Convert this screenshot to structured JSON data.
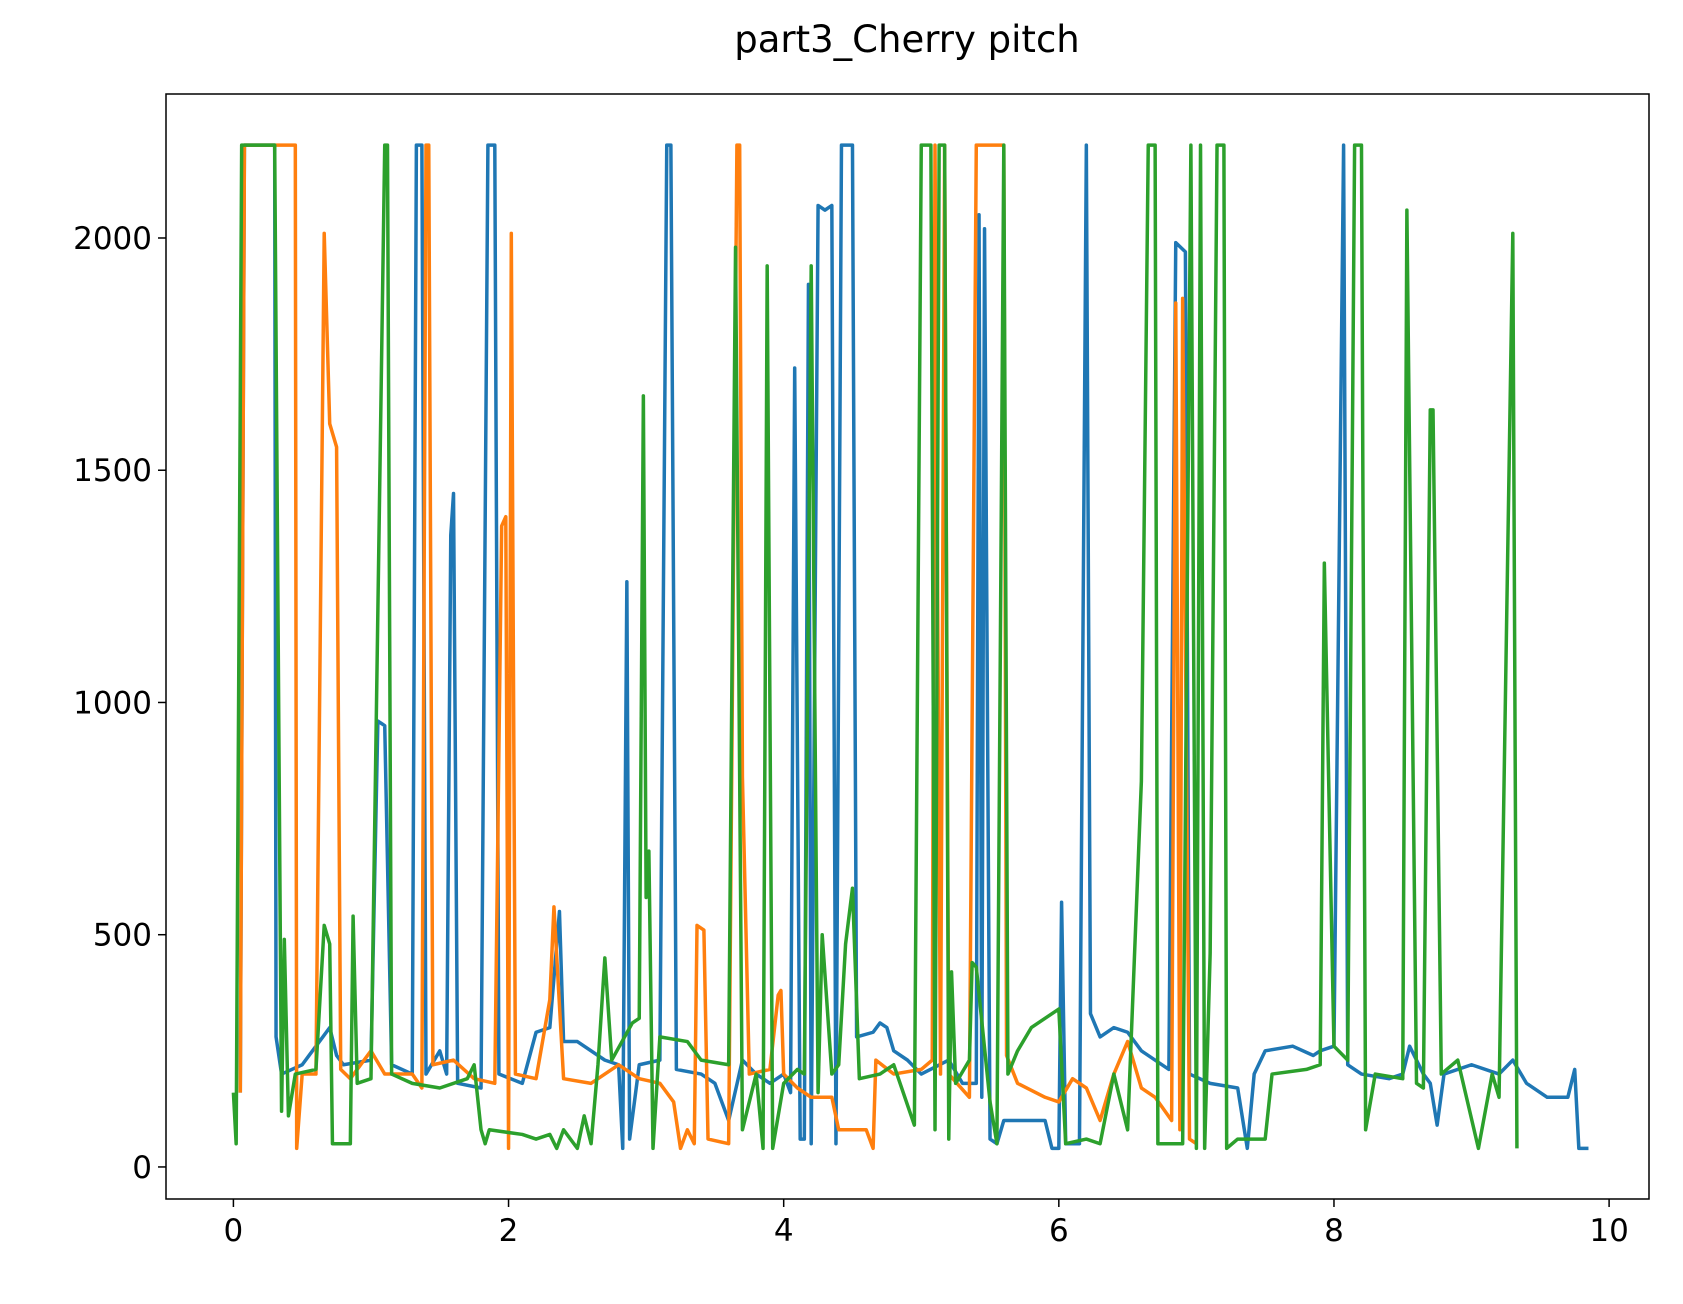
{
  "chart_data": {
    "type": "line",
    "title": "part3_Cherry pitch",
    "xlim": [
      -0.49,
      10.29
    ],
    "ylim": [
      -69,
      2310
    ],
    "xticks": [
      0,
      2,
      4,
      6,
      8,
      10
    ],
    "yticks": [
      0,
      500,
      1000,
      1500,
      2000
    ],
    "series": [
      {
        "color": "#1f77b4",
        "x": [
          0.05,
          0.08,
          0.3,
          0.31,
          0.35,
          0.5,
          0.55,
          0.65,
          0.7,
          0.75,
          0.8,
          1.0,
          1.05,
          1.1,
          1.15,
          1.3,
          1.33,
          1.37,
          1.4,
          1.5,
          1.55,
          1.58,
          1.6,
          1.63,
          1.8,
          1.85,
          1.9,
          1.93,
          2.1,
          2.2,
          2.3,
          2.37,
          2.4,
          2.5,
          2.7,
          2.8,
          2.83,
          2.86,
          2.88,
          2.95,
          3.1,
          3.15,
          3.18,
          3.22,
          3.4,
          3.5,
          3.6,
          3.7,
          3.8,
          3.9,
          4.0,
          4.05,
          4.08,
          4.12,
          4.15,
          4.18,
          4.2,
          4.25,
          4.3,
          4.35,
          4.38,
          4.42,
          4.5,
          4.53,
          4.65,
          4.7,
          4.75,
          4.8,
          4.9,
          5.0,
          5.2,
          5.3,
          5.4,
          5.42,
          5.44,
          5.46,
          5.5,
          5.55,
          5.6,
          5.9,
          5.95,
          6.0,
          6.02,
          6.05,
          6.15,
          6.2,
          6.23,
          6.3,
          6.4,
          6.5,
          6.6,
          6.8,
          6.85,
          6.92,
          6.95,
          7.1,
          7.3,
          7.37,
          7.42,
          7.5,
          7.7,
          7.85,
          7.9,
          8.0,
          8.07,
          8.1,
          8.2,
          8.4,
          8.5,
          8.55,
          8.65,
          8.7,
          8.75,
          8.8,
          9.0,
          9.2,
          9.3,
          9.4,
          9.55,
          9.7,
          9.75,
          9.78,
          9.85
        ],
        "values": [
          160,
          2200,
          2200,
          280,
          200,
          220,
          240,
          280,
          300,
          240,
          220,
          230,
          960,
          950,
          220,
          200,
          2200,
          2200,
          200,
          250,
          200,
          1360,
          1450,
          180,
          170,
          2200,
          2200,
          200,
          180,
          290,
          300,
          550,
          270,
          270,
          230,
          220,
          40,
          1260,
          60,
          220,
          230,
          2200,
          2200,
          210,
          200,
          180,
          100,
          230,
          200,
          180,
          200,
          160,
          1720,
          60,
          60,
          1900,
          50,
          2070,
          2060,
          2070,
          50,
          2200,
          2200,
          280,
          290,
          310,
          300,
          250,
          230,
          200,
          230,
          180,
          180,
          2050,
          150,
          2020,
          60,
          50,
          100,
          100,
          40,
          40,
          570,
          50,
          50,
          2200,
          330,
          280,
          300,
          290,
          250,
          210,
          1990,
          1970,
          200,
          180,
          170,
          40,
          200,
          250,
          260,
          240,
          250,
          260,
          2200,
          220,
          200,
          190,
          200,
          260,
          200,
          180,
          90,
          200,
          220,
          200,
          230,
          180,
          150,
          150,
          210,
          40,
          40
        ]
      },
      {
        "color": "#ff7f0e",
        "x": [
          0.05,
          0.08,
          0.45,
          0.46,
          0.5,
          0.6,
          0.66,
          0.7,
          0.75,
          0.78,
          0.85,
          1.0,
          1.1,
          1.3,
          1.37,
          1.4,
          1.42,
          1.45,
          1.6,
          1.75,
          1.9,
          1.95,
          1.98,
          2.0,
          2.02,
          2.05,
          2.2,
          2.3,
          2.33,
          2.4,
          2.6,
          2.8,
          2.95,
          3.1,
          3.2,
          3.25,
          3.3,
          3.35,
          3.37,
          3.42,
          3.45,
          3.6,
          3.66,
          3.68,
          3.7,
          3.75,
          3.9,
          3.96,
          3.98,
          4.0,
          4.1,
          4.2,
          4.35,
          4.4,
          4.6,
          4.65,
          4.67,
          4.8,
          5.0,
          5.08,
          5.1,
          5.14,
          5.17,
          5.2,
          5.35,
          5.4,
          5.6,
          5.62,
          5.7,
          5.9,
          6.0,
          6.1,
          6.2,
          6.3,
          6.4,
          6.5,
          6.6,
          6.7,
          6.82,
          6.85,
          6.88,
          6.9,
          6.95,
          7.0
        ],
        "values": [
          160,
          2200,
          2200,
          40,
          200,
          200,
          2010,
          1600,
          1550,
          210,
          190,
          250,
          200,
          200,
          170,
          2200,
          2200,
          220,
          230,
          190,
          180,
          1380,
          1400,
          40,
          2010,
          200,
          190,
          360,
          560,
          190,
          180,
          220,
          190,
          180,
          140,
          40,
          80,
          50,
          520,
          510,
          60,
          50,
          2200,
          2200,
          840,
          200,
          210,
          370,
          380,
          200,
          170,
          150,
          150,
          80,
          80,
          40,
          230,
          200,
          210,
          230,
          2200,
          200,
          2200,
          200,
          150,
          2200,
          2200,
          240,
          180,
          150,
          140,
          190,
          170,
          100,
          200,
          270,
          170,
          150,
          100,
          1860,
          80,
          1870,
          60,
          50
        ]
      },
      {
        "color": "#2ca02c",
        "x": [
          0,
          0.02,
          0.06,
          0.3,
          0.35,
          0.37,
          0.4,
          0.45,
          0.6,
          0.66,
          0.7,
          0.72,
          0.85,
          0.87,
          0.9,
          1.0,
          1.1,
          1.12,
          1.15,
          1.3,
          1.5,
          1.7,
          1.75,
          1.8,
          1.83,
          1.86,
          2.1,
          2.2,
          2.3,
          2.35,
          2.4,
          2.5,
          2.55,
          2.6,
          2.65,
          2.7,
          2.75,
          2.9,
          2.95,
          2.98,
          3.0,
          3.02,
          3.05,
          3.1,
          3.3,
          3.4,
          3.6,
          3.65,
          3.7,
          3.8,
          3.85,
          3.88,
          3.92,
          4.0,
          4.1,
          4.15,
          4.2,
          4.25,
          4.28,
          4.35,
          4.4,
          4.45,
          4.5,
          4.55,
          4.7,
          4.8,
          4.95,
          5.0,
          5.07,
          5.1,
          5.13,
          5.17,
          5.2,
          5.22,
          5.25,
          5.35,
          5.37,
          5.4,
          5.5,
          5.55,
          5.6,
          5.63,
          5.7,
          5.8,
          6.0,
          6.05,
          6.2,
          6.3,
          6.4,
          6.5,
          6.6,
          6.65,
          6.7,
          6.72,
          6.9,
          6.96,
          7.0,
          7.03,
          7.06,
          7.1,
          7.15,
          7.2,
          7.22,
          7.3,
          7.5,
          7.55,
          7.8,
          7.9,
          7.93,
          8.0,
          8.1,
          8.15,
          8.2,
          8.23,
          8.3,
          8.5,
          8.53,
          8.6,
          8.65,
          8.7,
          8.72,
          8.78,
          8.9,
          9.05,
          9.15,
          9.2,
          9.3,
          9.33
        ],
        "values": [
          160,
          50,
          2200,
          2200,
          120,
          490,
          110,
          200,
          210,
          520,
          480,
          50,
          50,
          540,
          180,
          190,
          2200,
          2200,
          200,
          180,
          170,
          190,
          220,
          80,
          50,
          80,
          70,
          60,
          70,
          40,
          80,
          40,
          110,
          50,
          220,
          450,
          230,
          310,
          320,
          1660,
          580,
          680,
          40,
          280,
          270,
          230,
          220,
          1980,
          80,
          200,
          40,
          1940,
          40,
          180,
          210,
          200,
          1940,
          160,
          500,
          200,
          220,
          480,
          600,
          190,
          200,
          220,
          90,
          2200,
          2200,
          80,
          2200,
          2200,
          60,
          420,
          180,
          230,
          440,
          430,
          140,
          50,
          2200,
          200,
          250,
          300,
          340,
          50,
          60,
          50,
          200,
          80,
          830,
          2200,
          2200,
          50,
          50,
          2200,
          40,
          2200,
          40,
          460,
          2200,
          2200,
          40,
          60,
          60,
          200,
          210,
          220,
          1300,
          260,
          230,
          2200,
          2200,
          80,
          200,
          190,
          2060,
          180,
          170,
          1630,
          1630,
          200,
          230,
          40,
          200,
          150,
          2010,
          40
        ]
      }
    ]
  }
}
